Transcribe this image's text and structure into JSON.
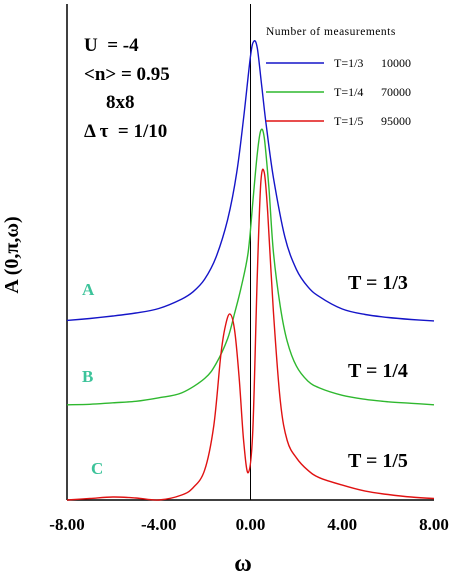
{
  "chart_data": {
    "type": "line",
    "xlabel": "ω",
    "ylabel": "A (0,π,ω)",
    "xlim": [
      -8,
      8
    ],
    "ylim": [
      0,
      1
    ],
    "grid": false,
    "x_ticks": [
      "-8.00",
      "-4.00",
      "0.00",
      "4.00",
      "8.00"
    ],
    "x_tick_values": [
      -8,
      -4,
      0,
      4,
      8
    ],
    "vertical_line_at_x": 0,
    "parameters": [
      "U  = -4",
      "<n> = 0.95",
      "8x8",
      "Δ τ  = 1/10"
    ],
    "legend": {
      "title": "Number of measurements",
      "placement": "top-right",
      "entries": [
        {
          "label": "T=1/3",
          "count": "10000",
          "color": "#1515c8"
        },
        {
          "label": "T=1/4",
          "count": "70000",
          "color": "#2fb82f"
        },
        {
          "label": "T=1/5",
          "count": "95000",
          "color": "#e01212"
        }
      ]
    },
    "series": [
      {
        "letter": "A",
        "temperature": "T = 1/3",
        "color": "#1515c8",
        "x": [
          -8,
          -7,
          -6,
          -5,
          -4,
          -3,
          -2.5,
          -2,
          -1.5,
          -1,
          -0.6,
          -0.3,
          0,
          0.15,
          0.3,
          0.5,
          0.7,
          1,
          1.5,
          2,
          2.5,
          3,
          4,
          5,
          6,
          7,
          8
        ],
        "y": [
          0.362,
          0.366,
          0.371,
          0.377,
          0.386,
          0.405,
          0.42,
          0.445,
          0.49,
          0.565,
          0.66,
          0.77,
          0.895,
          0.925,
          0.91,
          0.83,
          0.75,
          0.65,
          0.53,
          0.465,
          0.43,
          0.41,
          0.385,
          0.374,
          0.368,
          0.364,
          0.361
        ]
      },
      {
        "letter": "B",
        "temperature": "T = 1/4",
        "color": "#2fb82f",
        "x": [
          -8,
          -7,
          -6,
          -5,
          -4,
          -3,
          -2,
          -1.5,
          -1,
          -0.7,
          -0.4,
          -0.1,
          0.1,
          0.3,
          0.45,
          0.6,
          0.8,
          1,
          1.3,
          1.6,
          2,
          2.5,
          3,
          4,
          5,
          6,
          7,
          8
        ],
        "y": [
          0.192,
          0.193,
          0.196,
          0.199,
          0.206,
          0.216,
          0.245,
          0.275,
          0.325,
          0.375,
          0.43,
          0.5,
          0.6,
          0.7,
          0.745,
          0.73,
          0.63,
          0.5,
          0.39,
          0.32,
          0.27,
          0.24,
          0.226,
          0.211,
          0.203,
          0.198,
          0.195,
          0.192
        ]
      },
      {
        "letter": "C",
        "temperature": "T = 1/5",
        "color": "#e01212",
        "x": [
          -8,
          -7,
          -6,
          -5,
          -4,
          -3,
          -2.5,
          -2,
          -1.6,
          -1.3,
          -1.1,
          -0.9,
          -0.7,
          -0.5,
          -0.3,
          -0.1,
          0.1,
          0.3,
          0.45,
          0.6,
          0.75,
          1,
          1.3,
          1.6,
          2,
          2.5,
          3,
          4,
          5,
          6,
          7,
          8
        ],
        "y": [
          0.0,
          0.003,
          0.006,
          0.004,
          0.0,
          0.01,
          0.025,
          0.06,
          0.15,
          0.29,
          0.35,
          0.375,
          0.345,
          0.25,
          0.12,
          0.055,
          0.14,
          0.46,
          0.64,
          0.66,
          0.58,
          0.38,
          0.2,
          0.12,
          0.085,
          0.06,
          0.045,
          0.03,
          0.018,
          0.011,
          0.006,
          0.003
        ]
      }
    ]
  }
}
